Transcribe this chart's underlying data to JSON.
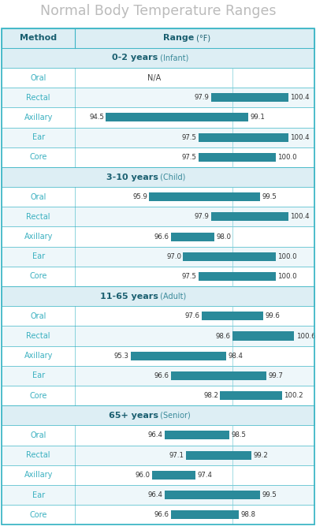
{
  "title": "Normal Body Temperature Ranges",
  "header_method": "Method",
  "header_range": "Range",
  "header_range_unit": " (°F)",
  "bar_color": "#2a8a9a",
  "section_bg": "#ddeef4",
  "row_bg_white": "#ffffff",
  "row_bg_light": "#eef7fa",
  "border_color": "#3ab5c5",
  "section_bold_color": "#1a5f70",
  "section_light_color": "#3a8a9a",
  "method_text_color": "#3ab0c0",
  "title_color": "#bbbbbb",
  "ref_line_color": "#7accd8",
  "sections": [
    {
      "label": "0-2 years",
      "sublabel": " (Infant)",
      "rows": [
        {
          "method": "Oral",
          "low": null,
          "high": null,
          "na": true
        },
        {
          "method": "Rectal",
          "low": 97.9,
          "high": 100.4
        },
        {
          "method": "Axillary",
          "low": 94.5,
          "high": 99.1
        },
        {
          "method": "Ear",
          "low": 97.5,
          "high": 100.4
        },
        {
          "method": "Core",
          "low": 97.5,
          "high": 100.0
        }
      ]
    },
    {
      "label": "3-10 years",
      "sublabel": " (Child)",
      "rows": [
        {
          "method": "Oral",
          "low": 95.9,
          "high": 99.5
        },
        {
          "method": "Rectal",
          "low": 97.9,
          "high": 100.4
        },
        {
          "method": "Axillary",
          "low": 96.6,
          "high": 98.0
        },
        {
          "method": "Ear",
          "low": 97.0,
          "high": 100.0
        },
        {
          "method": "Core",
          "low": 97.5,
          "high": 100.0
        }
      ]
    },
    {
      "label": "11-65 years",
      "sublabel": " (Adult)",
      "rows": [
        {
          "method": "Oral",
          "low": 97.6,
          "high": 99.6
        },
        {
          "method": "Rectal",
          "low": 98.6,
          "high": 100.6
        },
        {
          "method": "Axillary",
          "low": 95.3,
          "high": 98.4
        },
        {
          "method": "Ear",
          "low": 96.6,
          "high": 99.7
        },
        {
          "method": "Core",
          "low": 98.2,
          "high": 100.2
        }
      ]
    },
    {
      "label": "65+ years",
      "sublabel": " (Senior)",
      "rows": [
        {
          "method": "Oral",
          "low": 96.4,
          "high": 98.5
        },
        {
          "method": "Rectal",
          "low": 97.1,
          "high": 99.2
        },
        {
          "method": "Axillary",
          "low": 96.0,
          "high": 97.4
        },
        {
          "method": "Ear",
          "low": 96.4,
          "high": 99.5
        },
        {
          "method": "Core",
          "low": 96.6,
          "high": 98.8
        }
      ]
    }
  ],
  "xmin": 93.5,
  "xmax": 101.2,
  "ref_line_val": 98.6
}
